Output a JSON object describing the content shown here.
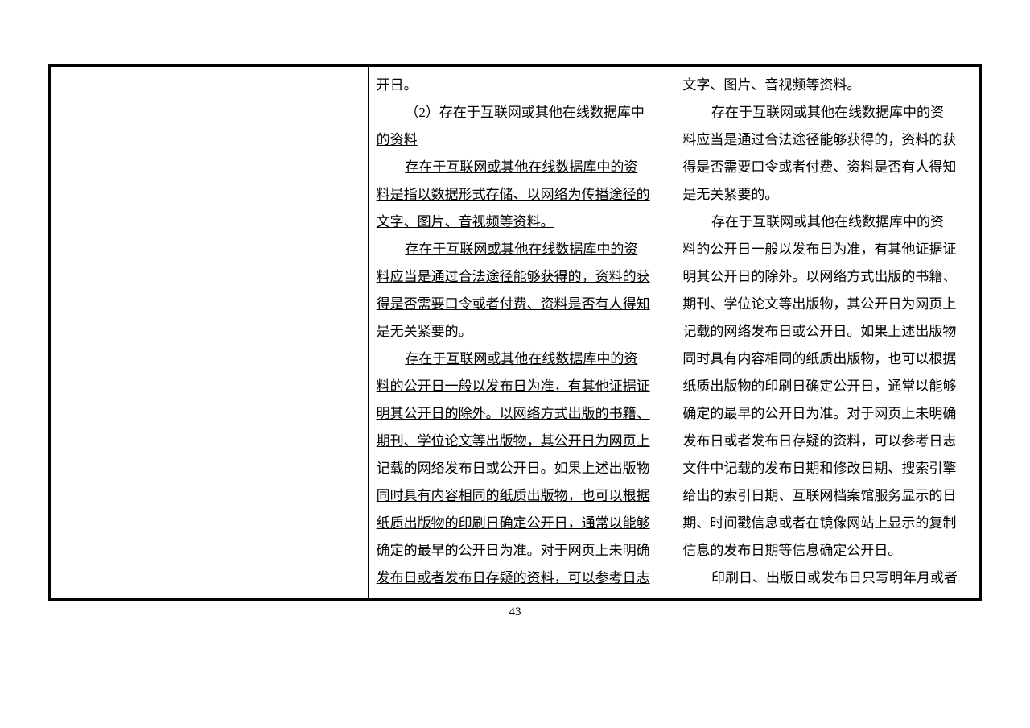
{
  "page_number": "43",
  "col2": {
    "l1": "开日。",
    "l2a": "（2）存在于互联网或其他在线数据库中",
    "l2b": "的资料",
    "p1a": "存在于互联网或其他在线数据库中的资",
    "p1b": "料是指以数据形式存储、以网络为传播途径的",
    "p1c": "文字、图片、音视频等资料。",
    "p2a": "存在于互联网或其他在线数据库中的资",
    "p2b": "料应当是通过合法途径能够获得的，资料的获",
    "p2c": "得是否需要口令或者付费、资料是否有人得知",
    "p2d": "是无关紧要的。",
    "p3a": "存在于互联网或其他在线数据库中的资",
    "p3b": "料的公开日一般以发布日为准，有其他证据证",
    "p3c": "明其公开日的除外。以网络方式出版的书籍、",
    "p3d": "期刊、学位论文等出版物，其公开日为网页上",
    "p3e": "记载的网络发布日或公开日。如果上述出版物",
    "p3f": "同时具有内容相同的纸质出版物，也可以根据",
    "p3g": "纸质出版物的印刷日确定公开日，通常以能够",
    "p3h": "确定的最早的公开日为准。对于网页上未明确",
    "p3i": "发布日或者发布日存疑的资料，可以参考日志"
  },
  "col3": {
    "l1": "文字、图片、音视频等资料。",
    "p1a": "存在于互联网或其他在线数据库中的资",
    "p1b": "料应当是通过合法途径能够获得的，资料的获",
    "p1c": "得是否需要口令或者付费、资料是否有人得知",
    "p1d": "是无关紧要的。",
    "p2a": "存在于互联网或其他在线数据库中的资",
    "p2b": "料的公开日一般以发布日为准，有其他证据证",
    "p2c": "明其公开日的除外。以网络方式出版的书籍、",
    "p2d": "期刊、学位论文等出版物，其公开日为网页上",
    "p2e": "记载的网络发布日或公开日。如果上述出版物",
    "p2f": "同时具有内容相同的纸质出版物，也可以根据",
    "p2g": "纸质出版物的印刷日确定公开日，通常以能够",
    "p2h": "确定的最早的公开日为准。对于网页上未明确",
    "p2i": "发布日或者发布日存疑的资料，可以参考日志",
    "p2j": "文件中记载的发布日期和修改日期、搜索引擎",
    "p2k": "给出的索引日期、互联网档案馆服务显示的日",
    "p2l": "期、时间戳信息或者在镜像网站上显示的复制",
    "p2m": "信息的发布日期等信息确定公开日。",
    "p3a": "印刷日、出版日或发布日只写明年月或者"
  }
}
